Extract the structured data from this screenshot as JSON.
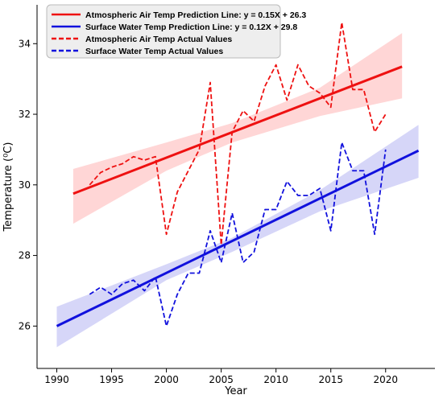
{
  "chart_data": {
    "type": "line",
    "title": "",
    "xlabel": "Year",
    "ylabel": "Temperature (⁰C)",
    "xlim": [
      1988.2,
      2024.5
    ],
    "ylim": [
      24.8,
      35.1
    ],
    "xticks": [
      1990,
      1995,
      2000,
      2005,
      2010,
      2015,
      2020
    ],
    "yticks": [
      26,
      28,
      30,
      32,
      34
    ],
    "grid": false,
    "legend_position": "top-left",
    "series": [
      {
        "name": "Atmospheric Air Temp Prediction Line: y = 0.15X + 26.3",
        "style": "solid",
        "color": "#ee1111",
        "x": [
          1991.5,
          2021.5
        ],
        "y": [
          29.75,
          33.35
        ]
      },
      {
        "name": "Surface Water Temp Prediction Line: y = 0.12X + 29.8",
        "style": "solid",
        "color": "#1111dd",
        "x": [
          1990,
          2023
        ],
        "y": [
          26.0,
          30.97
        ]
      },
      {
        "name": "Atmospheric Air Temp Actual Values",
        "style": "dashed",
        "color": "#ee1111",
        "x": [
          1993,
          1994,
          1995,
          1996,
          1997,
          1998,
          1999,
          2000,
          2001,
          2002,
          2003,
          2004,
          2005,
          2006,
          2007,
          2008,
          2009,
          2010,
          2011,
          2012,
          2013,
          2014,
          2015,
          2016,
          2017,
          2018,
          2019,
          2020
        ],
        "y": [
          30.0,
          30.35,
          30.5,
          30.6,
          30.8,
          30.7,
          30.8,
          28.6,
          29.8,
          30.4,
          31.0,
          32.9,
          28.3,
          31.5,
          32.1,
          31.8,
          32.8,
          33.4,
          32.4,
          33.4,
          32.8,
          32.6,
          32.2,
          34.6,
          32.7,
          32.7,
          31.5,
          32.0
        ]
      },
      {
        "name": "Surface Water Temp Actual Values",
        "style": "dashed",
        "color": "#1111dd",
        "x": [
          1993,
          1994,
          1995,
          1996,
          1997,
          1998,
          1999,
          2000,
          2001,
          2002,
          2003,
          2004,
          2005,
          2006,
          2007,
          2008,
          2009,
          2010,
          2011,
          2012,
          2013,
          2014,
          2015,
          2016,
          2017,
          2018,
          2019,
          2020
        ],
        "y": [
          26.9,
          27.1,
          26.9,
          27.2,
          27.3,
          27.0,
          27.4,
          26.0,
          26.9,
          27.5,
          27.5,
          28.7,
          27.8,
          29.2,
          27.8,
          28.1,
          29.3,
          29.3,
          30.1,
          29.7,
          29.7,
          29.9,
          28.7,
          31.2,
          30.4,
          30.4,
          28.6,
          31.0
        ]
      }
    ],
    "confidence_bands": [
      {
        "series": "Atmospheric Air Temp Prediction Line: y = 0.15X + 26.3",
        "color": "#ff9999",
        "x": [
          1991.5,
          2000,
          2006,
          2014,
          2021.5
        ],
        "upper": [
          30.45,
          31.2,
          31.75,
          32.75,
          34.3
        ],
        "lower": [
          28.9,
          30.4,
          31.2,
          31.95,
          32.45
        ]
      },
      {
        "series": "Surface Water Temp Prediction Line: y = 0.12X + 29.8",
        "color": "#9999ee",
        "x": [
          1990,
          2000,
          2006,
          2014,
          2023
        ],
        "upper": [
          26.55,
          27.75,
          28.5,
          29.85,
          31.7
        ],
        "lower": [
          25.4,
          27.3,
          28.1,
          29.25,
          30.2
        ]
      }
    ]
  },
  "axes": {
    "xlabel": "Year",
    "ylabel": "Temperature (⁰C)"
  },
  "legend": {
    "items": [
      {
        "label": "Atmospheric Air Temp Prediction Line: y = 0.15X + 26.3",
        "color": "#ee1111",
        "style": "solid"
      },
      {
        "label": "Surface Water Temp Prediction Line: y = 0.12X + 29.8",
        "color": "#1111dd",
        "style": "solid"
      },
      {
        "label": "Atmospheric Air Temp Actual Values",
        "color": "#ee1111",
        "style": "dashed"
      },
      {
        "label": "Surface Water Temp Actual Values",
        "color": "#1111dd",
        "style": "dashed"
      }
    ]
  }
}
